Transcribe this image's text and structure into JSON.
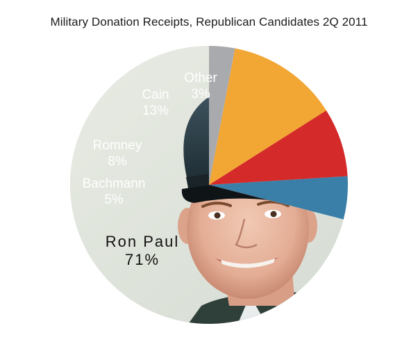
{
  "chart_data": {
    "type": "pie",
    "title": "Military Donation Receipts, Republican Candidates 2Q 2011",
    "slices": [
      {
        "name": "Ron Paul",
        "percent": 71,
        "label": "71%",
        "color": "#dfe3da",
        "photo": "soldier-portrait"
      },
      {
        "name": "Bachmann",
        "percent": 5,
        "label": "5%",
        "color": "#3a7fa8"
      },
      {
        "name": "Romney",
        "percent": 8,
        "label": "8%",
        "color": "#d42a2a"
      },
      {
        "name": "Cain",
        "percent": 13,
        "label": "13%",
        "color": "#f2a634"
      },
      {
        "name": "Other",
        "percent": 3,
        "label": "3%",
        "color": "#a9aaae"
      }
    ],
    "start_angle_deg": 0,
    "direction": "counterclockwise",
    "legend": "none",
    "grid": false
  }
}
